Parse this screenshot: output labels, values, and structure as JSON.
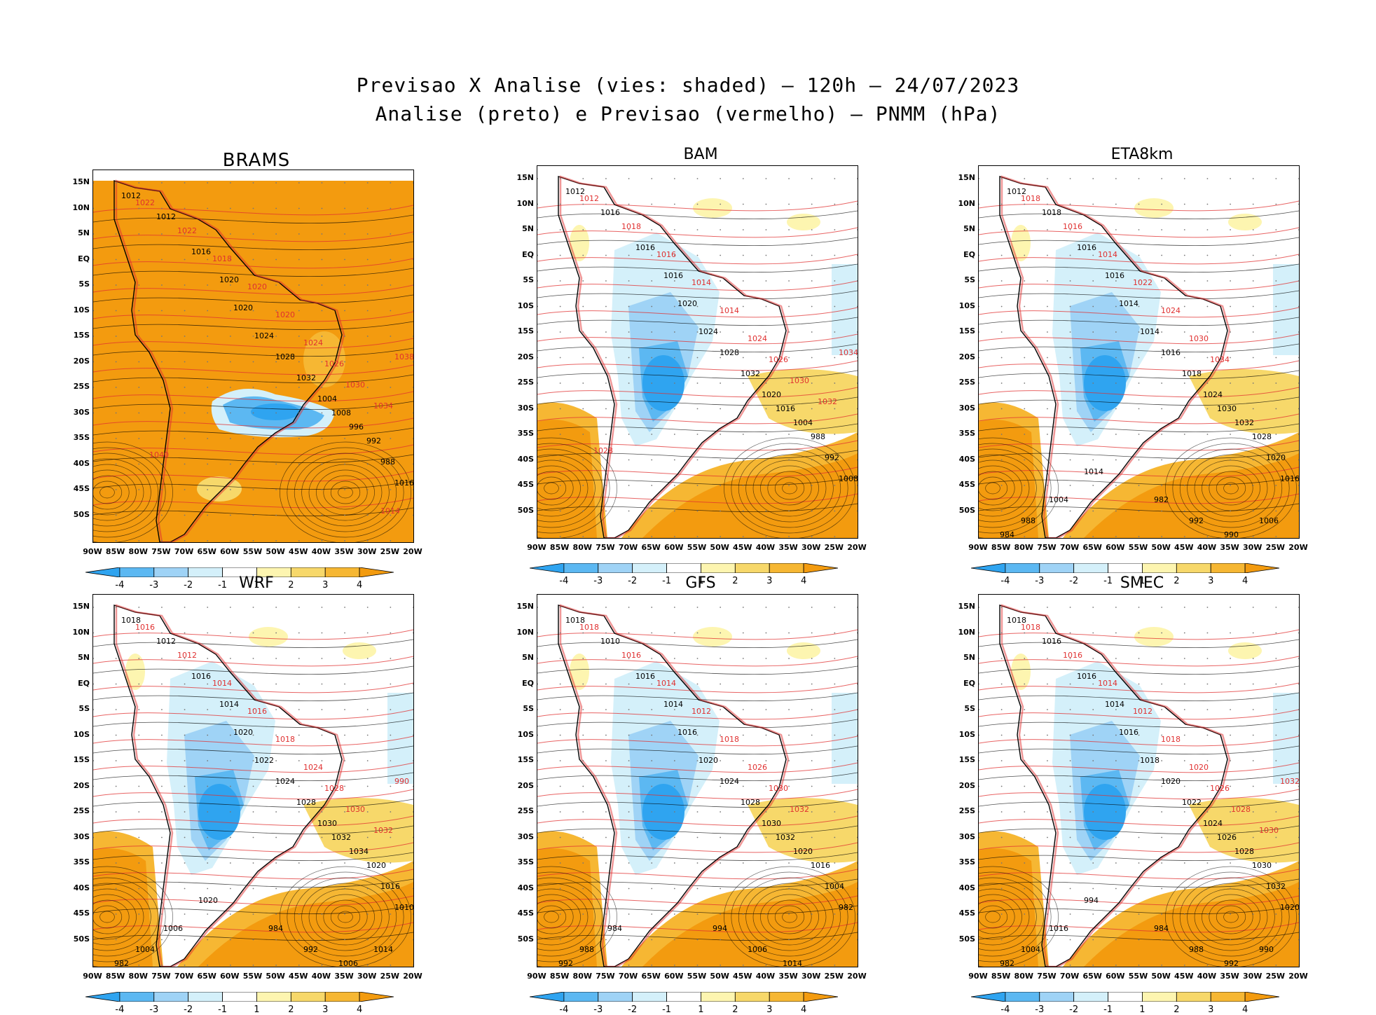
{
  "figure": {
    "title_line1": "Previsao X Analise (vies: shaded) – 120h – 24/07/2023",
    "title_line2": "Analise (preto) e Previsao (vermelho) – PNMM (hPa)"
  },
  "axes": {
    "lat_labels": [
      "15N",
      "10N",
      "5N",
      "EQ",
      "5S",
      "10S",
      "15S",
      "20S",
      "25S",
      "30S",
      "35S",
      "40S",
      "45S",
      "50S"
    ],
    "lon_labels": [
      "90W",
      "85W",
      "80W",
      "75W",
      "70W",
      "65W",
      "60W",
      "55W",
      "50W",
      "45W",
      "40W",
      "35W",
      "30W",
      "25W",
      "20W"
    ]
  },
  "colorbar": {
    "labels": [
      "-4",
      "-3",
      "-2",
      "-1",
      "1",
      "2",
      "3",
      "4"
    ],
    "colors": [
      "#2fa4f0",
      "#5cb8f2",
      "#9fd3f6",
      "#d4f0fa",
      "#ffffff",
      "#fdf5b0",
      "#f7d86a",
      "#f6b733",
      "#f39b0f"
    ]
  },
  "colors": {
    "analysis_contour": "#000000",
    "forecast_contour": "#e03030",
    "land_border": "#000000"
  },
  "panels": [
    {
      "title": "BRAMS",
      "bias_pattern": "positive",
      "labels_analysis": [
        "1012",
        "1012",
        "1016",
        "1020",
        "1020",
        "1024",
        "1028",
        "1032",
        "1004",
        "1008",
        "996",
        "992",
        "988",
        "1016"
      ],
      "labels_forecast": [
        "1022",
        "1022",
        "1018",
        "1020",
        "1020",
        "1024",
        "1026",
        "1030",
        "1034",
        "1038",
        "1040",
        "1014"
      ]
    },
    {
      "title": "BAM",
      "bias_pattern": "mixed",
      "labels_analysis": [
        "1012",
        "1016",
        "1016",
        "1016",
        "1020",
        "1024",
        "1028",
        "1032",
        "1020",
        "1016",
        "1004",
        "988",
        "992",
        "1008"
      ],
      "labels_forecast": [
        "1012",
        "1018",
        "1016",
        "1014",
        "1014",
        "1024",
        "1026",
        "1030",
        "1032",
        "1034",
        "1028"
      ]
    },
    {
      "title": "ETA8km",
      "bias_pattern": "mixed",
      "labels_analysis": [
        "1012",
        "1018",
        "1016",
        "1016",
        "1014",
        "1014",
        "1016",
        "1018",
        "1024",
        "1030",
        "1032",
        "1028",
        "1020",
        "1016",
        "1004",
        "988",
        "984",
        "982",
        "992",
        "990",
        "1006",
        "1014"
      ],
      "labels_forecast": [
        "1018",
        "1016",
        "1014",
        "1022",
        "1024",
        "1030",
        "1034"
      ]
    },
    {
      "title": "WRF",
      "bias_pattern": "mixed",
      "labels_analysis": [
        "1018",
        "1012",
        "1016",
        "1014",
        "1020",
        "1022",
        "1024",
        "1028",
        "1030",
        "1032",
        "1034",
        "1020",
        "1016",
        "1010",
        "1006",
        "1004",
        "982",
        "984",
        "992",
        "1006",
        "1014",
        "1020"
      ],
      "labels_forecast": [
        "1016",
        "1012",
        "1014",
        "1016",
        "1018",
        "1024",
        "1028",
        "1030",
        "1032",
        "990"
      ]
    },
    {
      "title": "GFS",
      "bias_pattern": "mixed",
      "labels_analysis": [
        "1018",
        "1010",
        "1016",
        "1014",
        "1016",
        "1020",
        "1024",
        "1028",
        "1030",
        "1032",
        "1020",
        "1016",
        "1004",
        "982",
        "984",
        "988",
        "992",
        "994",
        "1006",
        "1014"
      ],
      "labels_forecast": [
        "1018",
        "1016",
        "1014",
        "1012",
        "1018",
        "1026",
        "1030",
        "1032"
      ]
    },
    {
      "title": "SMEC",
      "bias_pattern": "mixed",
      "labels_analysis": [
        "1018",
        "1016",
        "1016",
        "1014",
        "1016",
        "1018",
        "1020",
        "1022",
        "1024",
        "1026",
        "1028",
        "1030",
        "1032",
        "1020",
        "1016",
        "1004",
        "982",
        "984",
        "988",
        "992",
        "990",
        "994"
      ],
      "labels_forecast": [
        "1018",
        "1016",
        "1014",
        "1012",
        "1018",
        "1020",
        "1026",
        "1028",
        "1030",
        "1032"
      ]
    }
  ]
}
